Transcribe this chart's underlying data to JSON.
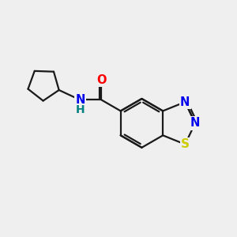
{
  "bg_color": "#efefef",
  "bond_color": "#1a1a1a",
  "bond_width": 1.6,
  "atom_colors": {
    "O": "#ff0000",
    "N": "#0000ee",
    "S": "#cccc00",
    "NH": "#0000ee",
    "H": "#008080"
  },
  "font_size": 10.5,
  "xlim": [
    0,
    10
  ],
  "ylim": [
    0,
    10
  ]
}
